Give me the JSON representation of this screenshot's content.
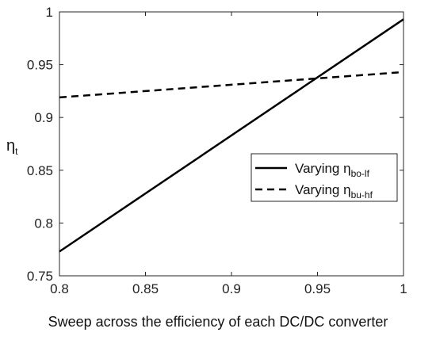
{
  "chart_data": {
    "type": "line",
    "xlabel": "Sweep across the efficiency of each DC/DC converter",
    "ylabel_main": "η",
    "ylabel_sub": "t",
    "xlim": [
      0.8,
      1.0
    ],
    "ylim": [
      0.75,
      1.0
    ],
    "xticks": [
      "0.8",
      "0.85",
      "0.9",
      "0.95",
      "1"
    ],
    "yticks": [
      "0.75",
      "0.8",
      "0.85",
      "0.9",
      "0.95",
      "1"
    ],
    "grid": false,
    "legend_position": "right",
    "series": [
      {
        "name_main": "Varying η",
        "name_sub": "bo-lf",
        "style": "solid",
        "x": [
          0.8,
          1.0
        ],
        "y": [
          0.773,
          0.993
        ]
      },
      {
        "name_main": "Varying η",
        "name_sub": "bu-hf",
        "style": "dashed",
        "x": [
          0.8,
          1.0
        ],
        "y": [
          0.919,
          0.943
        ]
      }
    ]
  }
}
